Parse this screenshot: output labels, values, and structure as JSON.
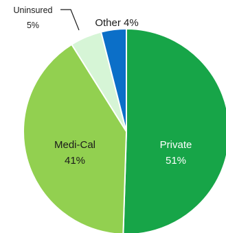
{
  "chart_data": {
    "type": "pie",
    "slices": [
      {
        "name": "Private",
        "value": 51,
        "display": "51%",
        "color": "#17a548",
        "label_color": "#ffffff"
      },
      {
        "name": "Medi-Cal",
        "value": 41,
        "display": "41%",
        "color": "#92d050",
        "label_color": "#1a1a1a"
      },
      {
        "name": "Uninsured",
        "value": 5,
        "display": "5%",
        "color": "#d6f5d6",
        "label_color": "#1a1a1a"
      },
      {
        "name": "Other",
        "value": 4,
        "display": "4%",
        "color": "#0b6fc8",
        "label_color": "#1a1a1a"
      }
    ],
    "outside_labels": [
      {
        "name": "Uninsured",
        "text": "Uninsured",
        "pct": "5%"
      },
      {
        "name": "Other",
        "text": "Other 4%"
      }
    ],
    "title": "",
    "legend": "none"
  }
}
